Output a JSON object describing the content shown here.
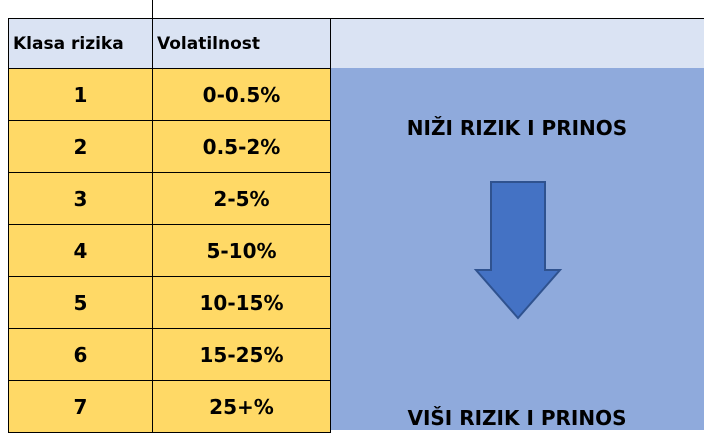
{
  "table": {
    "columns": [
      "Klasa rizika",
      "Volatilnost"
    ],
    "rows": [
      [
        "1",
        "0-0.5%"
      ],
      [
        "2",
        "0.5-2%"
      ],
      [
        "3",
        "2-5%"
      ],
      [
        "4",
        "5-10%"
      ],
      [
        "5",
        "10-15%"
      ],
      [
        "6",
        "15-25%"
      ],
      [
        "7",
        "25+%"
      ]
    ]
  },
  "panel": {
    "top": "NIŽI RIZIK I PRINOS",
    "bottom": "VIŠI RIZIK I PRINOS"
  }
}
